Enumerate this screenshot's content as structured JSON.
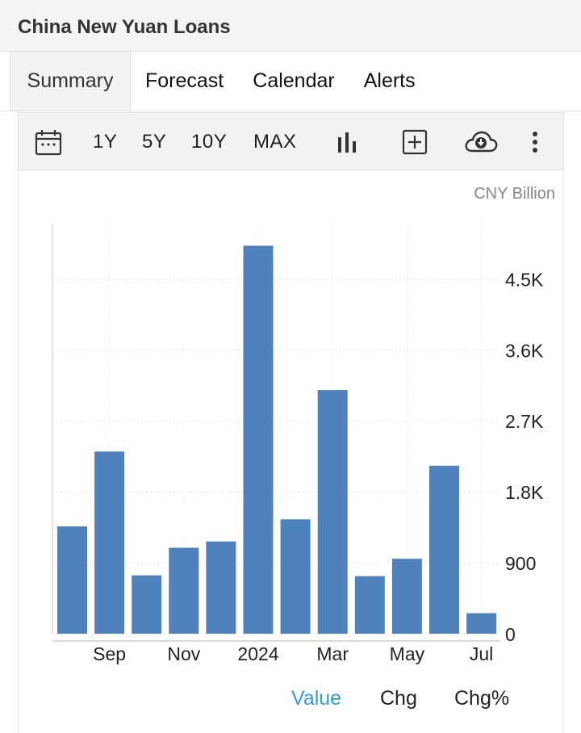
{
  "header": {
    "title": "China New Yuan Loans"
  },
  "tabs": [
    {
      "label": "Summary",
      "active": true
    },
    {
      "label": "Forecast",
      "active": false
    },
    {
      "label": "Calendar",
      "active": false
    },
    {
      "label": "Alerts",
      "active": false
    }
  ],
  "toolbar": {
    "calendar_icon": "calendar-icon",
    "ranges": [
      "1Y",
      "5Y",
      "10Y",
      "MAX"
    ],
    "chart_type_icon": "bar-chart-icon",
    "add_icon": "plus-box-icon",
    "download_icon": "cloud-download-icon",
    "more_icon": "more-vertical-icon"
  },
  "unit_label": "CNY Billion",
  "legend": {
    "value": "Value",
    "chg": "Chg",
    "chg_pct": "Chg%",
    "active_color": "#2f9fd8"
  },
  "chart_data": {
    "type": "bar",
    "bar_color": "#4f81bd",
    "x_tick_labels": [
      "Sep",
      "Nov",
      "2024",
      "Mar",
      "May",
      "Jul"
    ],
    "categories": [
      "Aug 2023",
      "Sep 2023",
      "Oct 2023",
      "Nov 2023",
      "Dec 2023",
      "Jan 2024",
      "Feb 2024",
      "Mar 2024",
      "Apr 2024",
      "May 2024",
      "Jun 2024",
      "Jul 2024"
    ],
    "values": [
      1360,
      2310,
      740,
      1090,
      1170,
      4920,
      1450,
      3090,
      730,
      950,
      2130,
      260
    ],
    "y_ticks": [
      0,
      900,
      1800,
      2700,
      3600,
      4500
    ],
    "y_tick_labels": [
      "0",
      "900",
      "1.8K",
      "2.7K",
      "3.6K",
      "4.5K"
    ],
    "ylim": [
      0,
      5200
    ],
    "grid": true,
    "y_axis_side": "right"
  }
}
